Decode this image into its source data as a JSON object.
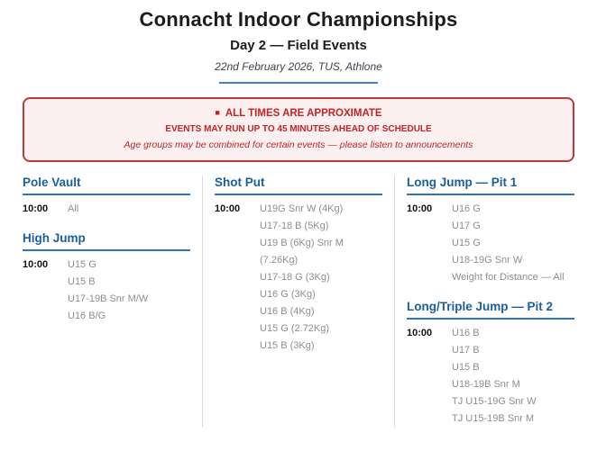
{
  "header": {
    "title": "Connacht Indoor Championships",
    "subtitle": "Day 2 — Field Events",
    "date_venue": "22nd February 2026, TUS, Athlone"
  },
  "notice": {
    "bullet": "■",
    "line1": "ALL TIMES ARE APPROXIMATE",
    "line2": "EVENTS MAY RUN UP TO 45 MINUTES AHEAD OF SCHEDULE",
    "line3": "Age groups may be combined for certain events — please listen to announcements"
  },
  "columns": [
    {
      "sections": [
        {
          "title": "Pole Vault",
          "time": "10:00",
          "events": [
            "All"
          ]
        },
        {
          "title": "High Jump",
          "time": "10:00",
          "events": [
            "U15 G",
            "U15 B",
            "U17-19B Snr M/W",
            "U16 B/G"
          ]
        }
      ]
    },
    {
      "sections": [
        {
          "title": "Shot Put",
          "time": "10:00",
          "events": [
            "U19G Snr W (4Kg)",
            "U17-18 B (5Kg)",
            "U19 B (6Kg) Snr M (7.26Kg)",
            "U17-18 G (3Kg)",
            "U16 G (3Kg)",
            "U16 B (4Kg)",
            "U15 G (2.72Kg)",
            "U15 B (3Kg)"
          ]
        }
      ]
    },
    {
      "sections": [
        {
          "title": "Long Jump — Pit 1",
          "time": "10:00",
          "events": [
            "U16 G",
            "U17 G",
            "U15 G",
            "U18-19G Snr W",
            "Weight for Distance — All"
          ]
        },
        {
          "title": "Long/Triple Jump — Pit 2",
          "time": "10:00",
          "events": [
            "U16 B",
            "U17 B",
            "U15 B",
            "U18-19B Snr M",
            "TJ U15-19G Snr W",
            "TJ U15-19B Snr M"
          ]
        }
      ]
    }
  ],
  "colors": {
    "heading_blue": "#1b5e9c",
    "rule_blue": "#2e75b6",
    "header_rule_blue": "#4181c2",
    "notice_red": "#c02525",
    "notice_border": "#bf3a3a",
    "notice_bg": "#fdf0f0",
    "item_gray": "#8e8e8e",
    "time_black": "#111111",
    "divider_gray": "#dcdcdc",
    "title_black": "#1c1c1c",
    "date_gray": "#40434d"
  }
}
